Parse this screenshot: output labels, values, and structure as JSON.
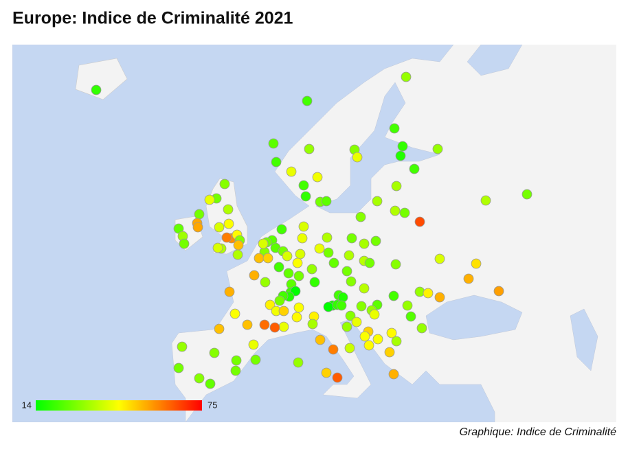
{
  "title": "Europe: Indice de Criminalité 2021",
  "legend": {
    "min": 14,
    "max": 75
  },
  "points": {
    "values": [
      20,
      22,
      25,
      22,
      42,
      32,
      22,
      20,
      43,
      28,
      25,
      30,
      42,
      32,
      22,
      20,
      18,
      22,
      32,
      34,
      34,
      35,
      28,
      30,
      28,
      35,
      66,
      30,
      28,
      42,
      35,
      28,
      26,
      55,
      55,
      33,
      28,
      40,
      44,
      58,
      60,
      45,
      30,
      52,
      35,
      40,
      35,
      22,
      25,
      28,
      25,
      30,
      28,
      40,
      52,
      50,
      22,
      40,
      40,
      42,
      35,
      42,
      28,
      26,
      40,
      44,
      32,
      28,
      26,
      20,
      25,
      22,
      14,
      18,
      22,
      28,
      28,
      34,
      28,
      35,
      36,
      28,
      28,
      30,
      30,
      40,
      48,
      54,
      56,
      36,
      22,
      18,
      16,
      14,
      20,
      22,
      25,
      22,
      32,
      46,
      54,
      32,
      24,
      32,
      45,
      34,
      54,
      54,
      32,
      46,
      43,
      50,
      44,
      45,
      42,
      62,
      64,
      52,
      44,
      52,
      46,
      34,
      52,
      60,
      38,
      32,
      30,
      42,
      50,
      44,
      44,
      45,
      50,
      50,
      64,
      32,
      54,
      32,
      42,
      30,
      32,
      30,
      28,
      28,
      42,
      28,
      28,
      30,
      26
    ]
  },
  "footer": "Graphique: Indice de Criminalité"
}
